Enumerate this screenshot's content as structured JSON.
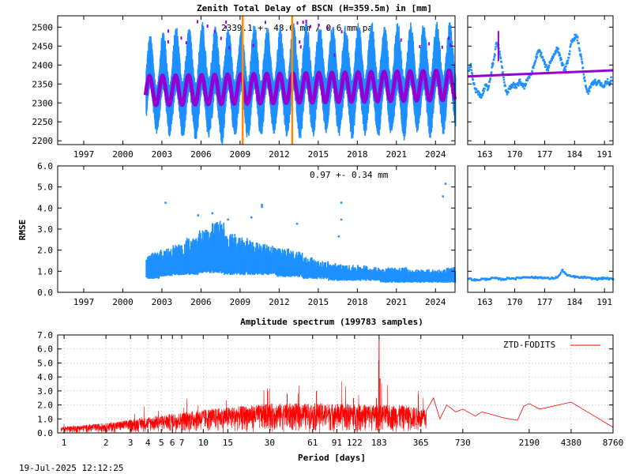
{
  "timestamp": "19-Jul-2025 12:12:25",
  "colors": {
    "data_blue": "#1e90ff",
    "fit_purple": "#9400d3",
    "marker_orange": "#ff8c00",
    "spectrum_red": "#ff0000"
  },
  "chart_data": [
    {
      "id": "ztd-main",
      "type": "scatter",
      "title": "Zenith Total Delay of BSCN (H=359.5m) in [mm]",
      "annotation": "2339.1 +-  48.6 mm /  0.6 mm pa",
      "xlim": [
        1995.0,
        2025.5
      ],
      "ylim": [
        2190,
        2530
      ],
      "xticks": [
        "1997",
        "2000",
        "2003",
        "2006",
        "2009",
        "2012",
        "2015",
        "2018",
        "2021",
        "2024"
      ],
      "xtick_values": [
        1997,
        2000,
        2003,
        2006,
        2009,
        2012,
        2015,
        2018,
        2021,
        2024
      ],
      "yticks": [
        "2200",
        "2250",
        "2300",
        "2350",
        "2400",
        "2450",
        "2500"
      ],
      "ytick_values": [
        2200,
        2250,
        2300,
        2350,
        2400,
        2450,
        2500
      ],
      "data_start": 2001.75,
      "data_end": 2025.5,
      "mean": 2339.1,
      "annual_amplitude": 48.6,
      "trend_per_year": 0.6,
      "vertical_markers": [
        2009.2,
        2013.0
      ],
      "series": [
        {
          "role": "observations",
          "color": "#1e90ff",
          "spread_max": [
            2470,
            2490,
            2500,
            2490,
            2510,
            2500,
            2490,
            2495,
            2500,
            2490,
            2490,
            2500,
            2510,
            2500,
            2495,
            2490,
            2500,
            2505,
            2490,
            2500,
            2495,
            2495,
            2500,
            2495
          ],
          "spread_min": [
            2250,
            2240,
            2230,
            2220,
            2230,
            2210,
            2230,
            2220,
            2230,
            2240,
            2230,
            2220,
            2230,
            2240,
            2230,
            2220,
            2230,
            2220,
            2230,
            2210,
            2240,
            2220,
            2230,
            2250
          ]
        },
        {
          "role": "model",
          "color": "#9400d3"
        }
      ]
    },
    {
      "id": "ztd-recent",
      "type": "scatter",
      "xlim": [
        159,
        193
      ],
      "ylim": [
        2190,
        2530
      ],
      "xticks": [
        "163",
        "170",
        "177",
        "184",
        "191"
      ],
      "xtick_values": [
        163,
        170,
        177,
        184,
        191
      ],
      "observations": [
        [
          159.0,
          2385
        ],
        [
          159.5,
          2400
        ],
        [
          160.0,
          2360
        ],
        [
          160.5,
          2340
        ],
        [
          161.0,
          2330
        ],
        [
          161.5,
          2325
        ],
        [
          162.0,
          2320
        ],
        [
          162.5,
          2335
        ],
        [
          163.0,
          2350
        ],
        [
          163.5,
          2340
        ],
        [
          164.0,
          2365
        ],
        [
          164.5,
          2400
        ],
        [
          165.0,
          2420
        ],
        [
          165.5,
          2460
        ],
        [
          166.0,
          2450
        ],
        [
          166.5,
          2420
        ],
        [
          167.0,
          2380
        ],
        [
          167.5,
          2345
        ],
        [
          168.0,
          2330
        ],
        [
          168.5,
          2340
        ],
        [
          169.0,
          2345
        ],
        [
          169.5,
          2350
        ],
        [
          170.0,
          2345
        ],
        [
          170.5,
          2350
        ],
        [
          171.0,
          2360
        ],
        [
          171.5,
          2350
        ],
        [
          172.0,
          2345
        ],
        [
          172.5,
          2360
        ],
        [
          173.0,
          2370
        ],
        [
          173.5,
          2375
        ],
        [
          174.0,
          2390
        ],
        [
          174.5,
          2410
        ],
        [
          175.0,
          2430
        ],
        [
          175.5,
          2440
        ],
        [
          176.0,
          2430
        ],
        [
          176.5,
          2415
        ],
        [
          177.0,
          2400
        ],
        [
          177.5,
          2390
        ],
        [
          178.0,
          2410
        ],
        [
          178.5,
          2420
        ],
        [
          179.0,
          2430
        ],
        [
          179.5,
          2445
        ],
        [
          180.0,
          2440
        ],
        [
          180.5,
          2420
        ],
        [
          181.0,
          2400
        ],
        [
          181.5,
          2390
        ],
        [
          182.0,
          2405
        ],
        [
          182.5,
          2430
        ],
        [
          183.0,
          2460
        ],
        [
          183.5,
          2470
        ],
        [
          184.0,
          2480
        ],
        [
          184.5,
          2470
        ],
        [
          185.0,
          2440
        ],
        [
          185.5,
          2410
        ],
        [
          186.0,
          2370
        ],
        [
          186.5,
          2340
        ],
        [
          187.0,
          2330
        ],
        [
          187.5,
          2345
        ],
        [
          188.0,
          2355
        ],
        [
          188.5,
          2360
        ],
        [
          189.0,
          2350
        ],
        [
          189.5,
          2360
        ],
        [
          190.0,
          2350
        ],
        [
          190.5,
          2345
        ],
        [
          191.0,
          2355
        ],
        [
          191.5,
          2360
        ],
        [
          192.0,
          2355
        ],
        [
          192.5,
          2370
        ]
      ],
      "model_line": [
        [
          159,
          2370
        ],
        [
          193,
          2386
        ]
      ]
    },
    {
      "id": "rmse-main",
      "type": "scatter",
      "ylabel": "RMSE",
      "annotation": "0.97 +-  0.34 mm",
      "xlim": [
        1995.0,
        2025.5
      ],
      "ylim": [
        0,
        6
      ],
      "xticks": [
        "1997",
        "2000",
        "2003",
        "2006",
        "2009",
        "2012",
        "2015",
        "2018",
        "2021",
        "2024"
      ],
      "xtick_values": [
        1997,
        2000,
        2003,
        2006,
        2009,
        2012,
        2015,
        2018,
        2021,
        2024
      ],
      "yticks": [
        "0.0",
        "1.0",
        "2.0",
        "3.0",
        "4.0",
        "5.0",
        "6.0"
      ],
      "ytick_values": [
        0,
        1,
        2,
        3,
        4,
        5,
        6
      ],
      "yearly_low": [
        0.7,
        0.8,
        0.9,
        0.9,
        1.0,
        1.0,
        0.9,
        0.9,
        0.9,
        0.9,
        0.8,
        0.8,
        0.7,
        0.7,
        0.6,
        0.6,
        0.6,
        0.6,
        0.5,
        0.5,
        0.5,
        0.5,
        0.5,
        0.5
      ],
      "yearly_high": [
        1.9,
        2.1,
        2.3,
        2.6,
        3.0,
        3.4,
        2.8,
        2.6,
        2.4,
        2.3,
        2.1,
        2.0,
        1.7,
        1.5,
        1.4,
        1.3,
        1.3,
        1.2,
        1.2,
        1.2,
        1.1,
        1.1,
        1.1,
        1.2
      ],
      "outliers": [
        [
          2003.2,
          4.3
        ],
        [
          2005.7,
          3.7
        ],
        [
          2006.8,
          3.8
        ],
        [
          2008.0,
          3.5
        ],
        [
          2009.8,
          3.6
        ],
        [
          2010.6,
          4.1
        ],
        [
          2010.6,
          4.2
        ],
        [
          2013.3,
          3.3
        ],
        [
          2016.7,
          4.3
        ],
        [
          2016.7,
          3.5
        ],
        [
          2016.5,
          2.7
        ],
        [
          2024.7,
          5.2
        ],
        [
          2024.5,
          4.6
        ]
      ]
    },
    {
      "id": "rmse-recent",
      "type": "scatter",
      "xlim": [
        159,
        193
      ],
      "ylim": [
        0,
        6
      ],
      "xticks": [
        "163",
        "170",
        "177",
        "184",
        "191"
      ],
      "xtick_values": [
        163,
        170,
        177,
        184,
        191
      ],
      "observations": [
        [
          159,
          0.7
        ],
        [
          160,
          0.65
        ],
        [
          161,
          0.62
        ],
        [
          162,
          0.68
        ],
        [
          163,
          0.66
        ],
        [
          164,
          0.7
        ],
        [
          165,
          0.72
        ],
        [
          166,
          0.68
        ],
        [
          167,
          0.66
        ],
        [
          168,
          0.7
        ],
        [
          169,
          0.72
        ],
        [
          170,
          0.7
        ],
        [
          171,
          0.74
        ],
        [
          172,
          0.76
        ],
        [
          173,
          0.78
        ],
        [
          174,
          0.75
        ],
        [
          175,
          0.74
        ],
        [
          176,
          0.76
        ],
        [
          177,
          0.72
        ],
        [
          178,
          0.7
        ],
        [
          179,
          0.72
        ],
        [
          180,
          0.8
        ],
        [
          181,
          1.1
        ],
        [
          182,
          0.85
        ],
        [
          183,
          0.8
        ],
        [
          184,
          0.78
        ],
        [
          185,
          0.74
        ],
        [
          186,
          0.76
        ],
        [
          187,
          0.72
        ],
        [
          188,
          0.7
        ],
        [
          189,
          0.68
        ],
        [
          190,
          0.7
        ],
        [
          191,
          0.72
        ],
        [
          192,
          0.68
        ],
        [
          193,
          0.66
        ]
      ]
    },
    {
      "id": "spectrum",
      "type": "line",
      "title": "Amplitude spectrum (199783 samples)",
      "xlabel": "Period [days]",
      "legend": "ZTD-FODITS",
      "legend_position": "top-right",
      "xscale": "log",
      "xlim": [
        0.9,
        8760
      ],
      "ylim": [
        0,
        7
      ],
      "xticks": [
        "1",
        "2",
        "3",
        "4",
        "5",
        "6",
        "7",
        "10",
        "15",
        "30",
        "61",
        "91",
        "122",
        "183",
        "365",
        "730",
        "2190",
        "4380",
        "8760"
      ],
      "xtick_values": [
        1,
        2,
        3,
        4,
        5,
        6,
        7,
        10,
        15,
        30,
        61,
        91,
        122,
        183,
        365,
        730,
        2190,
        4380,
        8760
      ],
      "yticks": [
        "0.0",
        "1.0",
        "2.0",
        "3.0",
        "4.0",
        "5.0",
        "6.0",
        "7.0"
      ],
      "ytick_values": [
        0,
        1,
        2,
        3,
        4,
        5,
        6,
        7
      ],
      "noise_envelope": [
        [
          0.9,
          0.3
        ],
        [
          2,
          0.5
        ],
        [
          5,
          0.9
        ],
        [
          10,
          1.2
        ],
        [
          30,
          1.5
        ],
        [
          90,
          1.5
        ],
        [
          300,
          1.4
        ],
        [
          500,
          1.0
        ]
      ],
      "peaks": [
        [
          183,
          6.8
        ],
        [
          182,
          5.2
        ],
        [
          186,
          3.9
        ],
        [
          175,
          2.5
        ],
        [
          120,
          2.5
        ],
        [
          65,
          3.0
        ],
        [
          40,
          2.8
        ],
        [
          29,
          3.0
        ]
      ],
      "low_freq": [
        [
          400,
          1.6
        ],
        [
          450,
          2.5
        ],
        [
          500,
          1.0
        ],
        [
          560,
          2.0
        ],
        [
          650,
          1.5
        ],
        [
          730,
          1.7
        ],
        [
          900,
          1.2
        ],
        [
          1000,
          1.5
        ],
        [
          1200,
          1.3
        ],
        [
          1400,
          1.1
        ],
        [
          1800,
          0.9
        ],
        [
          2000,
          1.9
        ],
        [
          2190,
          2.1
        ],
        [
          2600,
          1.7
        ],
        [
          4380,
          2.2
        ],
        [
          8760,
          0.4
        ]
      ]
    }
  ]
}
